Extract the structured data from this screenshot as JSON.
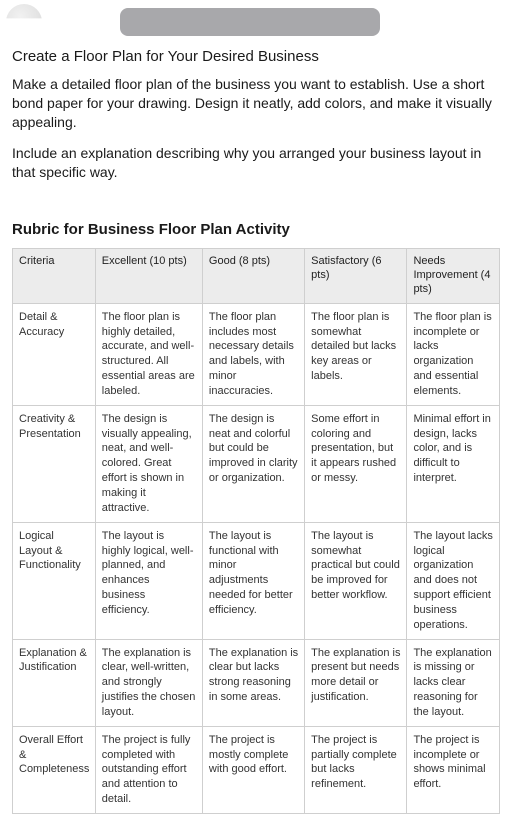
{
  "instructions": {
    "title": "Create a Floor Plan for Your Desired Business",
    "para1": "Make a detailed floor plan of the business you want to establish. Use a short bond paper for your drawing. Design it neatly, add colors, and make it visually appealing.",
    "para2": "Include an explanation describing why you arranged your business layout in that specific way."
  },
  "rubric": {
    "title": "Rubric for Business Floor Plan Activity",
    "columns": [
      "Criteria",
      "Excellent (10 pts)",
      "Good (8 pts)",
      "Satisfactory (6 pts)",
      "Needs Improvement (4 pts)"
    ],
    "rows": [
      {
        "criteria": "Detail & Accuracy",
        "excellent": "The floor plan is highly detailed, accurate, and well-structured. All essential areas are labeled.",
        "good": "The floor plan includes most necessary details and labels, with minor inaccuracies.",
        "satisfactory": "The floor plan is somewhat detailed but lacks key areas or labels.",
        "needs": "The floor plan is incomplete or lacks organization and essential elements."
      },
      {
        "criteria": "Creativity & Presentation",
        "excellent": "The design is visually appealing, neat, and well-colored. Great effort is shown in making it attractive.",
        "good": "The design is neat and colorful but could be improved in clarity or organization.",
        "satisfactory": "Some effort in coloring and presentation, but it appears rushed or messy.",
        "needs": "Minimal effort in design, lacks color, and is difficult to interpret."
      },
      {
        "criteria": "Logical Layout & Functionality",
        "excellent": "The layout is highly logical, well-planned, and enhances business efficiency.",
        "good": "The layout is functional with minor adjustments needed for better efficiency.",
        "satisfactory": "The layout is somewhat practical but could be improved for better workflow.",
        "needs": "The layout lacks logical organization and does not support efficient business operations."
      },
      {
        "criteria": "Explanation & Justification",
        "excellent": "The explanation is clear, well-written, and strongly justifies the chosen layout.",
        "good": "The explanation is clear but lacks strong reasoning in some areas.",
        "satisfactory": "The explanation is present but needs more detail or justification.",
        "needs": "The explanation is missing or lacks clear reasoning for the layout."
      },
      {
        "criteria": "Overall Effort & Completeness",
        "excellent": "The project is fully completed with outstanding effort and attention to detail.",
        "good": "The project is mostly complete with good effort.",
        "satisfactory": "The project is partially complete but lacks refinement.",
        "needs": "The project is incomplete or shows minimal effort."
      }
    ]
  }
}
